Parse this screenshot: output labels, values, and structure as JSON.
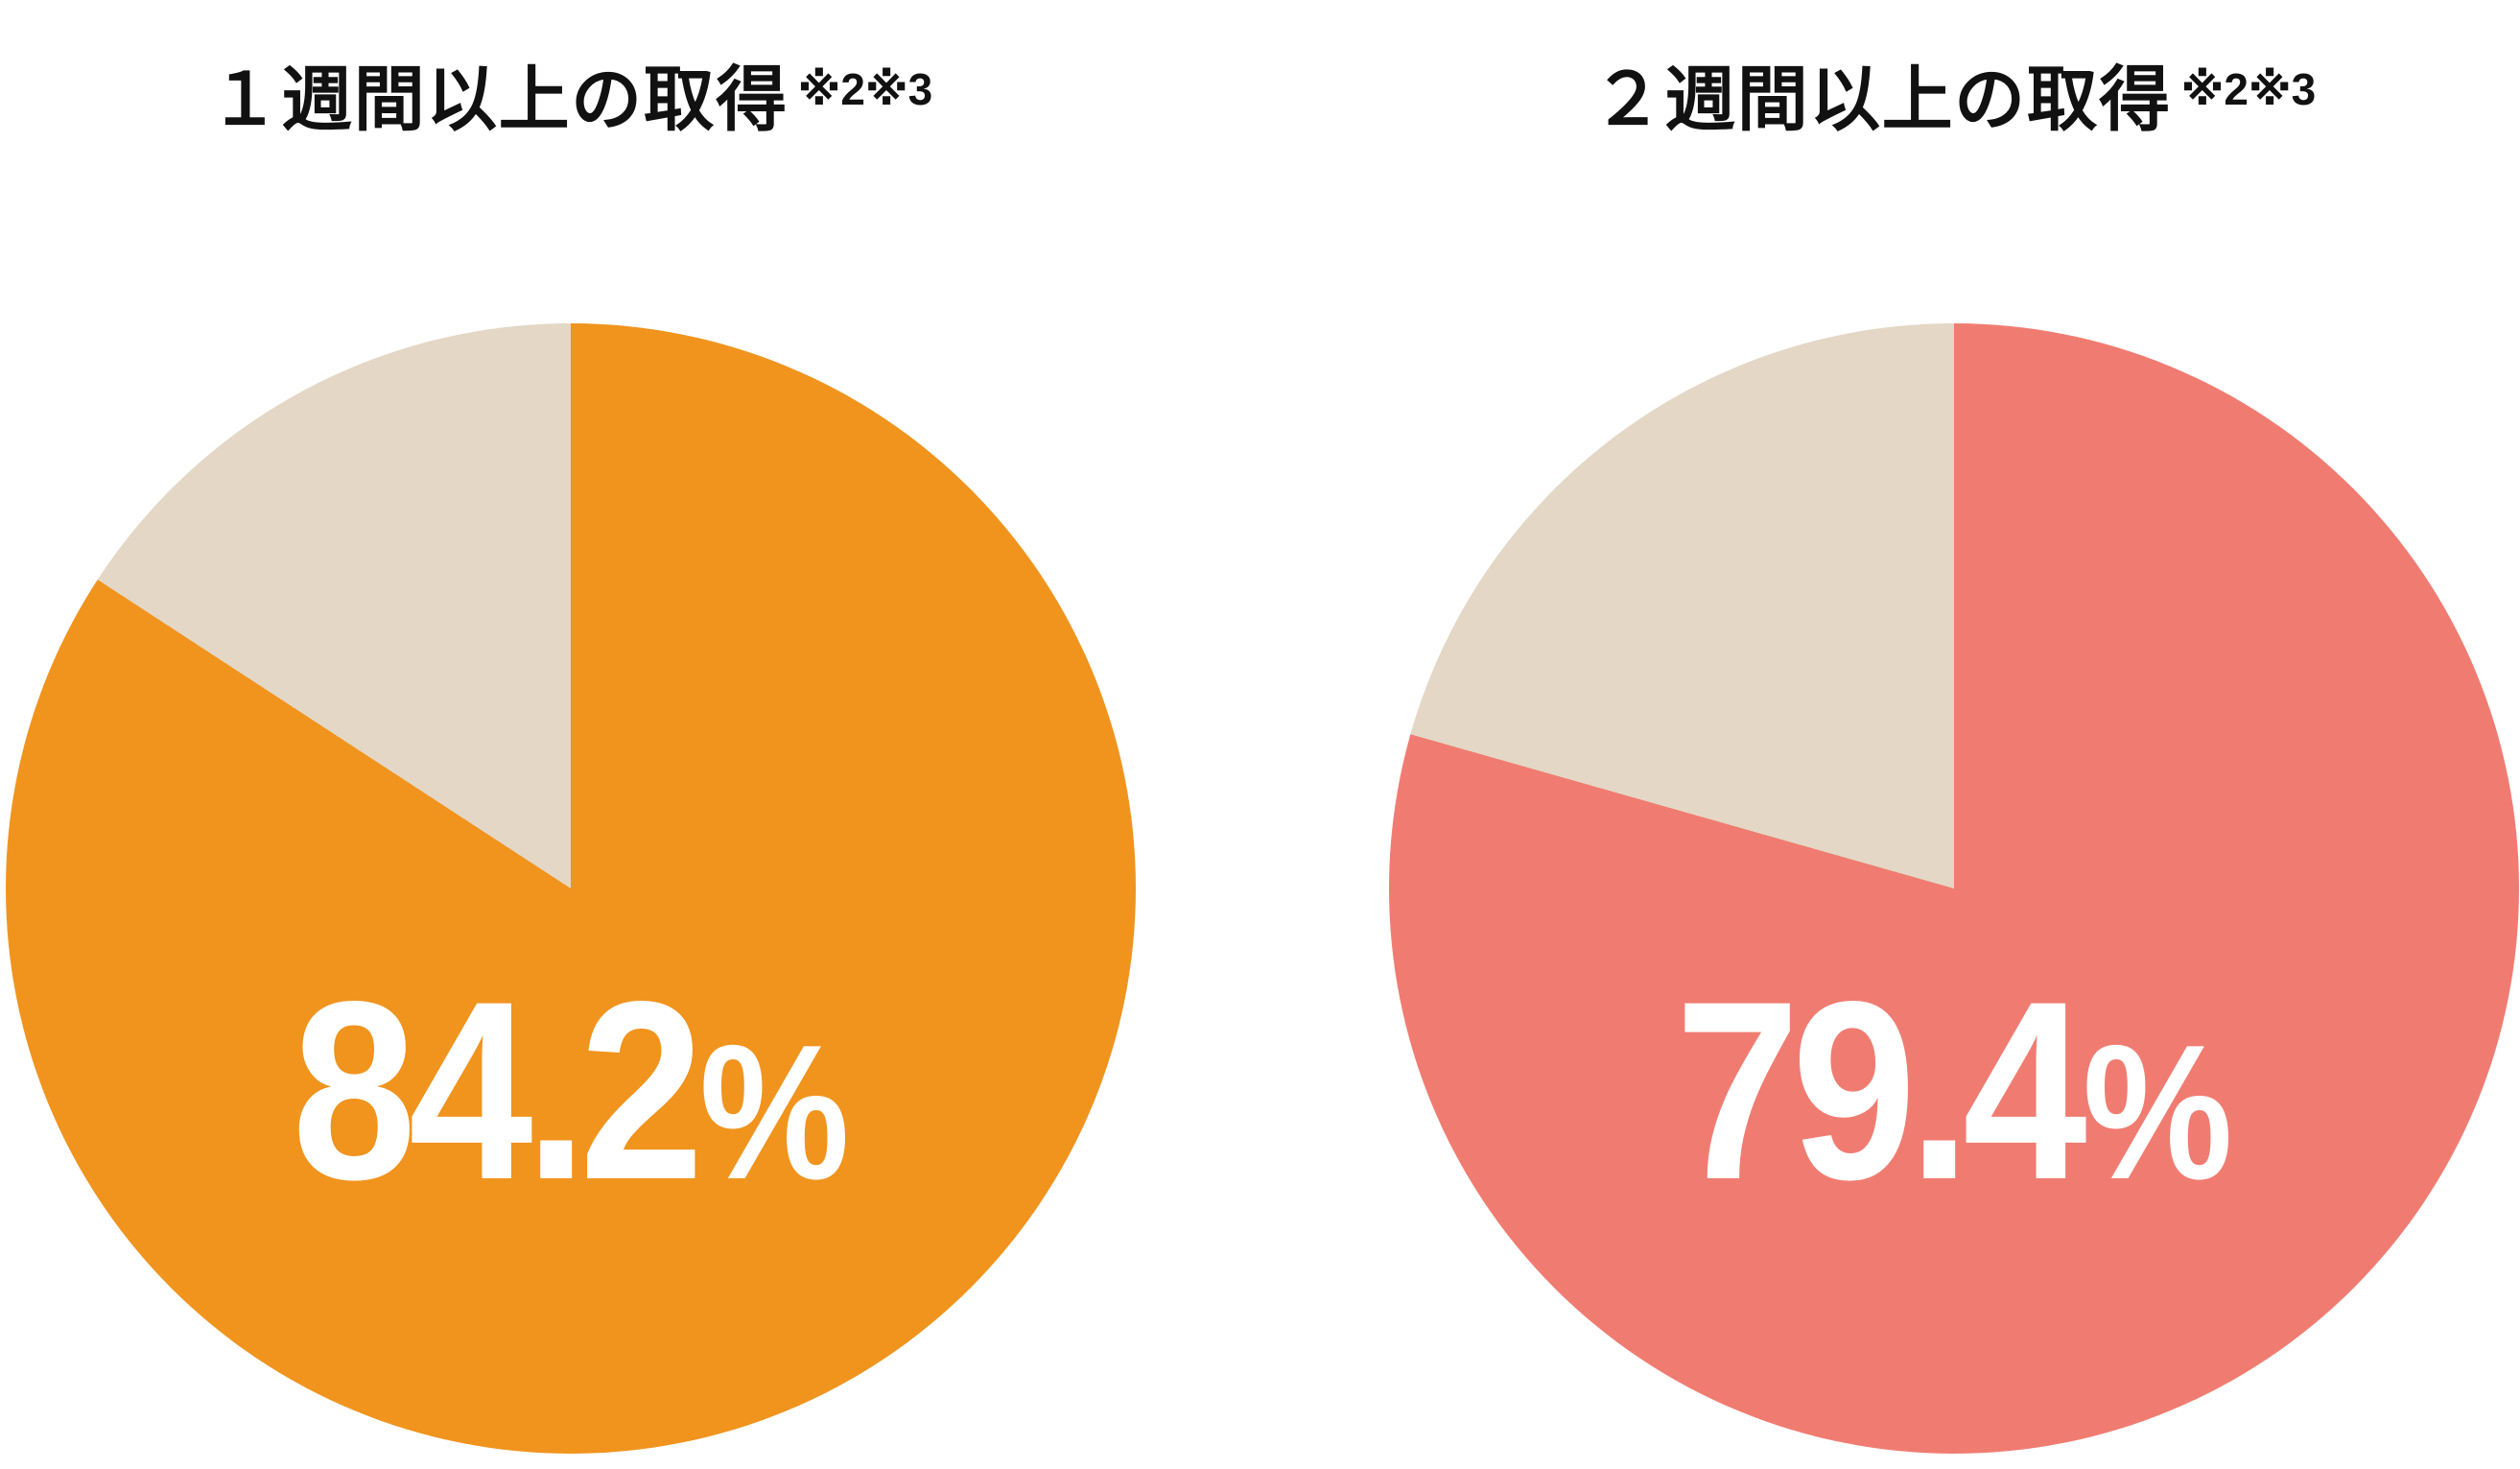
{
  "page": {
    "background": "#FFFFFF",
    "text_color": "#111111"
  },
  "chart_data": [
    {
      "type": "pie",
      "title": "１週間以上の取得",
      "title_note": "※2※3",
      "center_label": {
        "value": "84.2",
        "unit": "%"
      },
      "slices": [
        {
          "value": 84.2,
          "color": "#F0941E"
        },
        {
          "value": 15.8,
          "color": "#E4D7C5"
        }
      ],
      "start_angle_deg": 0,
      "direction": "clockwise",
      "value_label_color": "#FFFFFF",
      "legend": "none",
      "grid": "off"
    },
    {
      "type": "pie",
      "title": "２週間以上の取得",
      "title_note": "※2※3",
      "center_label": {
        "value": "79.4",
        "unit": "%"
      },
      "slices": [
        {
          "value": 79.4,
          "color": "#F07C71"
        },
        {
          "value": 20.6,
          "color": "#E4D7C5"
        }
      ],
      "start_angle_deg": 0,
      "direction": "clockwise",
      "value_label_color": "#FFFFFF",
      "legend": "none",
      "grid": "off"
    }
  ]
}
